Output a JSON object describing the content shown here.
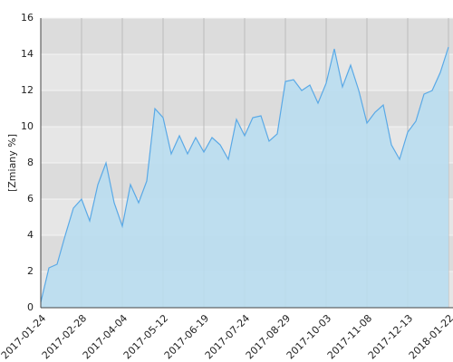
{
  "chart_data": {
    "type": "area",
    "y_label": "[Zmiany %]",
    "x": [
      "2017-01-24",
      "2017-01-31",
      "2017-02-07",
      "2017-02-14",
      "2017-02-21",
      "2017-02-28",
      "2017-03-07",
      "2017-03-14",
      "2017-03-21",
      "2017-03-28",
      "2017-04-04",
      "2017-04-11",
      "2017-04-19",
      "2017-04-26",
      "2017-05-05",
      "2017-05-12",
      "2017-05-19",
      "2017-05-26",
      "2017-06-02",
      "2017-06-09",
      "2017-06-19",
      "2017-06-26",
      "2017-07-03",
      "2017-07-10",
      "2017-07-17",
      "2017-07-24",
      "2017-07-31",
      "2017-08-07",
      "2017-08-14",
      "2017-08-22",
      "2017-08-29",
      "2017-09-05",
      "2017-09-12",
      "2017-09-19",
      "2017-09-26",
      "2017-10-03",
      "2017-10-10",
      "2017-10-17",
      "2017-10-24",
      "2017-10-31",
      "2017-11-08",
      "2017-11-15",
      "2017-11-22",
      "2017-11-29",
      "2017-12-06",
      "2017-12-13",
      "2017-12-20",
      "2017-12-28",
      "2018-01-05",
      "2018-01-12",
      "2018-01-22"
    ],
    "series": [
      {
        "name": "Zmiany",
        "color": "#5aa9e6",
        "fill": "#b9ddef",
        "values": [
          0.3,
          2.2,
          2.4,
          4.0,
          5.5,
          6.0,
          4.8,
          6.8,
          8.0,
          5.8,
          4.5,
          6.8,
          5.8,
          7.0,
          11.0,
          10.5,
          8.5,
          9.5,
          8.5,
          9.4,
          8.6,
          9.4,
          9.0,
          8.2,
          10.4,
          9.5,
          10.5,
          10.6,
          9.2,
          9.6,
          12.5,
          12.6,
          12.0,
          12.3,
          11.3,
          12.4,
          14.3,
          12.2,
          13.4,
          12.0,
          10.2,
          10.8,
          11.2,
          9.0,
          8.2,
          9.7,
          10.3,
          11.8,
          12.0,
          13.0,
          14.4
        ]
      }
    ],
    "xticks": [
      "2017-01-24",
      "2017-02-28",
      "2017-04-04",
      "2017-05-12",
      "2017-06-19",
      "2017-07-24",
      "2017-08-29",
      "2017-10-03",
      "2017-11-08",
      "2017-12-13",
      "2018-01-22"
    ],
    "ylim": [
      0,
      16
    ],
    "yticks": [
      0,
      2,
      4,
      6,
      8,
      10,
      12,
      14,
      16
    ],
    "grid": true
  }
}
